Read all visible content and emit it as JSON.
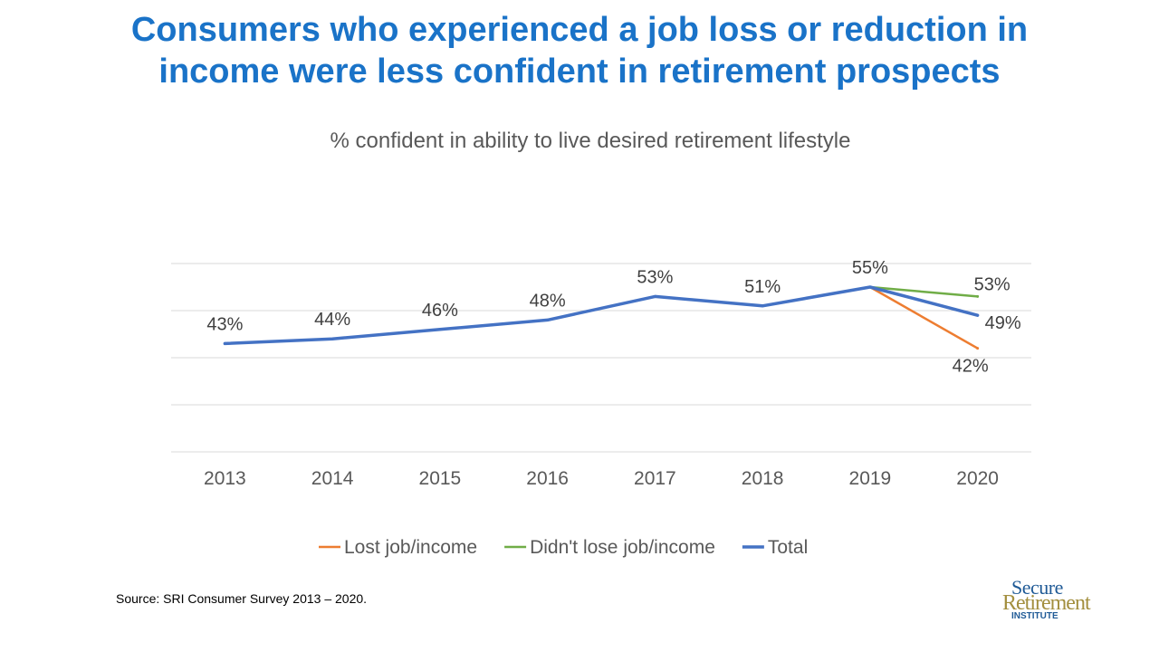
{
  "title": {
    "line1": "Consumers who experienced a job loss or reduction in",
    "line2": "income were less confident in retirement prospects"
  },
  "chart_data": {
    "type": "line",
    "subtitle": "% confident in ability to live desired retirement lifestyle",
    "categories": [
      "2013",
      "2014",
      "2015",
      "2016",
      "2017",
      "2018",
      "2019",
      "2020"
    ],
    "ylim": [
      20,
      60
    ],
    "grid": true,
    "legend_position": "bottom",
    "series": [
      {
        "name": "Lost job/income",
        "color": "#ed7d31",
        "values": [
          null,
          null,
          null,
          null,
          null,
          null,
          55,
          42
        ],
        "labels": [
          null,
          null,
          null,
          null,
          null,
          null,
          null,
          "42%"
        ]
      },
      {
        "name": "Didn't lose job/income",
        "color": "#70ad47",
        "values": [
          null,
          null,
          null,
          null,
          null,
          null,
          55,
          53
        ],
        "labels": [
          null,
          null,
          null,
          null,
          null,
          null,
          null,
          "53%"
        ]
      },
      {
        "name": "Total",
        "color": "#4472c4",
        "values": [
          43,
          44,
          46,
          48,
          53,
          51,
          55,
          49
        ],
        "labels": [
          "43%",
          "44%",
          "46%",
          "48%",
          "53%",
          "51%",
          "55%",
          "49%"
        ]
      }
    ]
  },
  "source": "Source: SRI Consumer Survey 2013 – 2020.",
  "logo": {
    "line1": "Secure",
    "line2": "Retirement",
    "line3": "INSTITUTE"
  }
}
